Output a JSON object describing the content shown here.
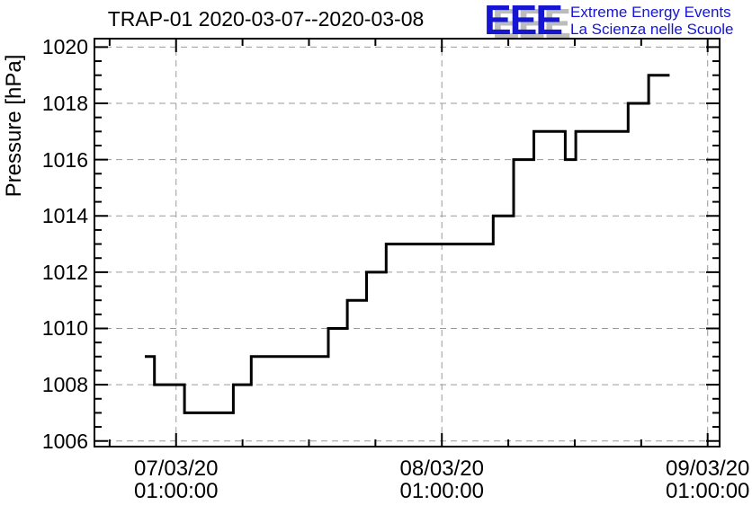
{
  "title": "TRAP-01 2020-03-07--2020-03-08",
  "logo": {
    "acronym": "EEE",
    "line1": "Extreme Energy Events",
    "line2": "La Scienza nelle Scuole",
    "color": "#1515d2",
    "shadow_color": "#bcbcbc"
  },
  "chart_data": {
    "type": "line",
    "style": "step-after",
    "title": "TRAP-01 2020-03-07--2020-03-08",
    "xlabel": "",
    "ylabel": "Pressure [hPa]",
    "x_unit": "hours since 2020-03-07 00:00",
    "xlim": [
      -6.37,
      50.08
    ],
    "ylim": [
      1005.8,
      1020.3
    ],
    "grid": true,
    "grid_color": "#9a9a9a",
    "line_color": "#000000",
    "x_major_ticks": [
      {
        "t": 1,
        "label_line1": "07/03/20",
        "label_line2": "01:00:00"
      },
      {
        "t": 25,
        "label_line1": "08/03/20",
        "label_line2": "01:00:00"
      },
      {
        "t": 49,
        "label_line1": "09/03/20",
        "label_line2": "01:00:00"
      }
    ],
    "x_minor_tick_start": -5,
    "x_minor_tick_step_hours": 6,
    "y_major_ticks": [
      1006,
      1008,
      1010,
      1012,
      1014,
      1016,
      1018,
      1020
    ],
    "y_minor_tick_step": 0.5,
    "series": [
      {
        "name": "pressure-steps",
        "color": "#000000",
        "points": [
          [
            -1.82,
            1009
          ],
          [
            -0.95,
            1008
          ],
          [
            1.76,
            1007
          ],
          [
            6.17,
            1008
          ],
          [
            7.79,
            1009
          ],
          [
            14.75,
            1010
          ],
          [
            16.46,
            1011
          ],
          [
            18.2,
            1012
          ],
          [
            19.97,
            1013
          ],
          [
            29.64,
            1014
          ],
          [
            31.48,
            1016
          ],
          [
            33.31,
            1017
          ],
          [
            36.14,
            1016
          ],
          [
            37.09,
            1017
          ],
          [
            41.82,
            1018
          ],
          [
            43.67,
            1019
          ],
          [
            45.56,
            1019
          ]
        ]
      }
    ]
  },
  "colors": {
    "axis": "#000000",
    "background": "#ffffff"
  }
}
